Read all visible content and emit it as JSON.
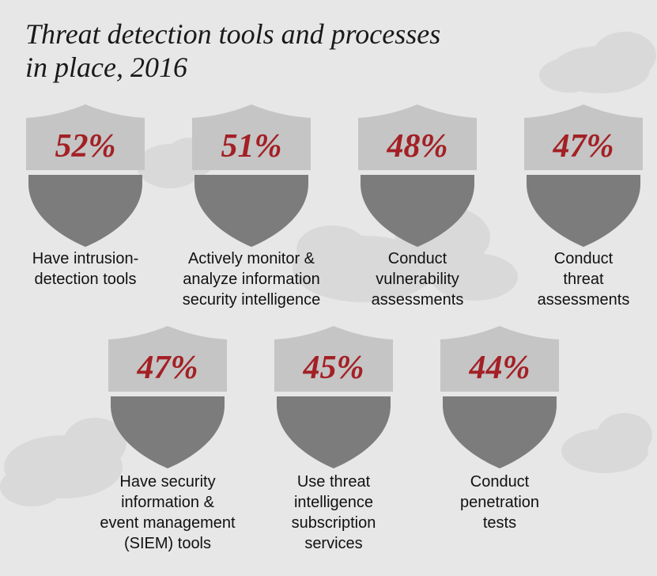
{
  "title_lines": [
    "Threat detection tools and processes",
    "in place, 2016"
  ],
  "colors": {
    "background": "#e7e7e7",
    "shield_top": "#c5c5c5",
    "shield_bottom": "#7c7c7c",
    "percent_text": "#a32025",
    "cloud": "#d9d9d9"
  },
  "chart_data": {
    "type": "bar",
    "title": "Threat detection tools and processes in place, 2016",
    "categories": [
      "Have intrusion-detection tools",
      "Actively monitor & analyze information security intelligence",
      "Conduct vulnerability assessments",
      "Conduct threat assessments",
      "Have security information & event management (SIEM) tools",
      "Use threat intelligence subscription services",
      "Conduct penetration tests"
    ],
    "values": [
      52,
      51,
      48,
      47,
      47,
      45,
      44
    ],
    "value_labels": [
      "52%",
      "51%",
      "48%",
      "47%",
      "47%",
      "45%",
      "44%"
    ],
    "label_lines": [
      [
        "Have intrusion-",
        "detection tools"
      ],
      [
        "Actively monitor &",
        "analyze information",
        "security intelligence"
      ],
      [
        "Conduct",
        "vulnerability",
        "assessments"
      ],
      [
        "Conduct",
        "threat",
        "assessments"
      ],
      [
        "Have security",
        "information &",
        "event management",
        "(SIEM) tools"
      ],
      [
        "Use threat",
        "intelligence",
        "subscription",
        "services"
      ],
      [
        "Conduct",
        "penetration",
        "tests"
      ]
    ]
  }
}
